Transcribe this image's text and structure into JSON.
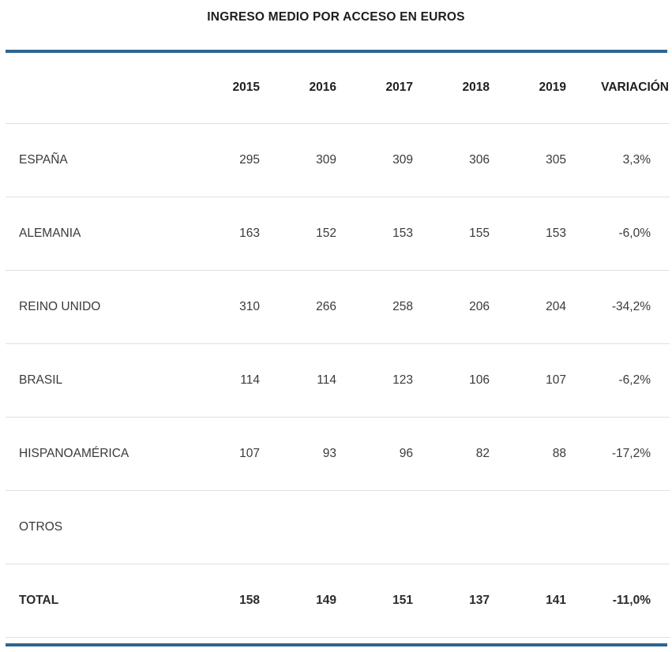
{
  "title": "INGRESO MEDIO POR ACCESO EN EUROS",
  "colors": {
    "accent_rule": "#2e6593",
    "row_divider": "#e0e0e0",
    "body_text": "#3a3a3a",
    "header_text": "#1f1f1f"
  },
  "table": {
    "columns": [
      "",
      "2015",
      "2016",
      "2017",
      "2018",
      "2019",
      "VARIACIÓN"
    ],
    "rows": [
      {
        "label": "ESPAÑA",
        "values": [
          "295",
          "309",
          "309",
          "306",
          "305",
          "3,3%"
        ],
        "bold": false
      },
      {
        "label": "ALEMANIA",
        "values": [
          "163",
          "152",
          "153",
          "155",
          "153",
          "-6,0%"
        ],
        "bold": false
      },
      {
        "label": "REINO UNIDO",
        "values": [
          "310",
          "266",
          "258",
          "206",
          "204",
          "-34,2%"
        ],
        "bold": false
      },
      {
        "label": "BRASIL",
        "values": [
          "114",
          "114",
          "123",
          "106",
          "107",
          "-6,2%"
        ],
        "bold": false
      },
      {
        "label": "HISPANOAMÉRICA",
        "values": [
          "107",
          "93",
          "96",
          "82",
          "88",
          "-17,2%"
        ],
        "bold": false
      },
      {
        "label": "OTROS",
        "values": [
          "",
          "",
          "",
          "",
          "",
          ""
        ],
        "bold": false
      },
      {
        "label": "TOTAL",
        "values": [
          "158",
          "149",
          "151",
          "137",
          "141",
          "-11,0%"
        ],
        "bold": true
      }
    ]
  },
  "chart_data": {
    "type": "table",
    "title": "INGRESO MEDIO POR ACCESO EN EUROS",
    "categories": [
      "2015",
      "2016",
      "2017",
      "2018",
      "2019"
    ],
    "series": [
      {
        "name": "ESPAÑA",
        "values": [
          295,
          309,
          309,
          306,
          305
        ],
        "variacion": "3,3%"
      },
      {
        "name": "ALEMANIA",
        "values": [
          163,
          152,
          153,
          155,
          153
        ],
        "variacion": "-6,0%"
      },
      {
        "name": "REINO UNIDO",
        "values": [
          310,
          266,
          258,
          206,
          204
        ],
        "variacion": "-34,2%"
      },
      {
        "name": "BRASIL",
        "values": [
          114,
          114,
          123,
          106,
          107
        ],
        "variacion": "-6,2%"
      },
      {
        "name": "HISPANOAMÉRICA",
        "values": [
          107,
          93,
          96,
          82,
          88
        ],
        "variacion": "-17,2%"
      },
      {
        "name": "OTROS",
        "values": [],
        "variacion": ""
      },
      {
        "name": "TOTAL",
        "values": [
          158,
          149,
          151,
          137,
          141
        ],
        "variacion": "-11,0%"
      }
    ],
    "units": "euros",
    "notes": "Average revenue per access in euros; VARIACIÓN is the percent change column"
  }
}
